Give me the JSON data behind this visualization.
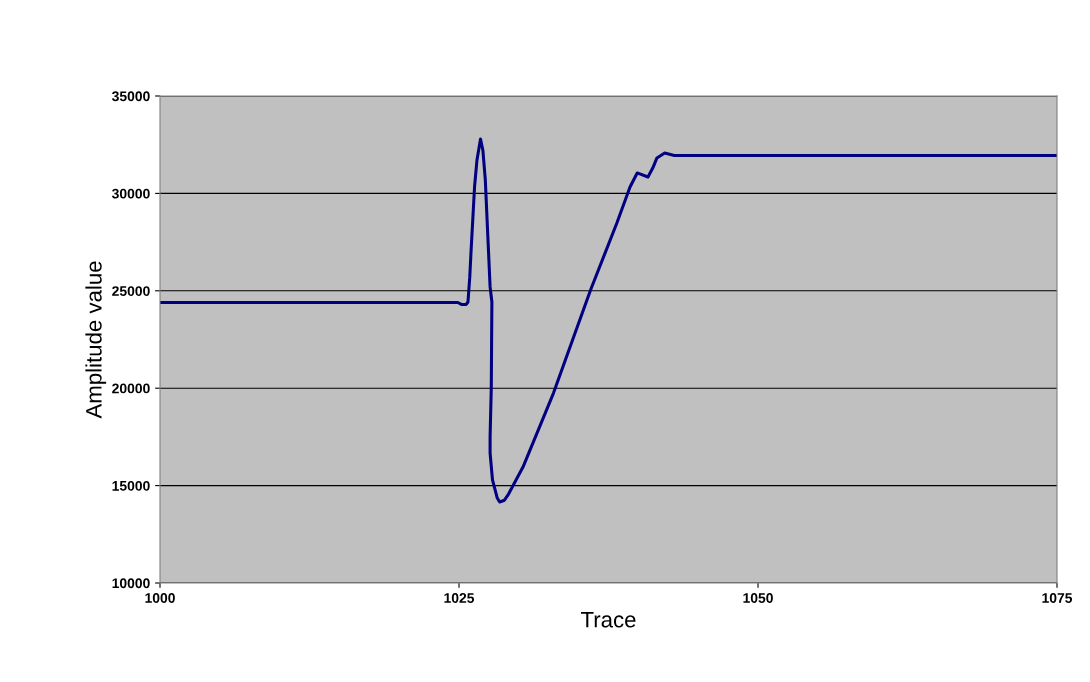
{
  "chart_data": {
    "type": "line",
    "xlabel": "Trace",
    "ylabel": "Amplitude value",
    "series": [
      {
        "color": "#000080",
        "x": [
          1000,
          1024.9,
          1025.2,
          1025.6,
          1025.75,
          1025.9,
          1026.0,
          1026.3,
          1026.5,
          1026.8,
          1027.0,
          1027.2,
          1027.6,
          1027.75,
          1027.7,
          1027.6,
          1027.6,
          1027.8,
          1028.2,
          1028.4,
          1028.8,
          1029.1,
          1030.35,
          1032.9,
          1036.0,
          1038.2,
          1039.3,
          1039.9,
          1040.8,
          1041.2,
          1041.55,
          1042.2,
          1043.0,
          1075
        ],
        "values": [
          24400,
          24400,
          24300,
          24300,
          24425,
          25700,
          26940,
          30330,
          31700,
          32790,
          32200,
          30690,
          25200,
          24425,
          20060,
          17500,
          16670,
          15290,
          14360,
          14160,
          14250,
          14520,
          15950,
          19750,
          25040,
          28480,
          30330,
          31050,
          30840,
          31300,
          31820,
          32070,
          31950,
          31950
        ]
      }
    ],
    "xlim": [
      1000,
      1075
    ],
    "xticks": [
      1000,
      1025,
      1050,
      1075
    ],
    "ylim": [
      10000,
      35000
    ],
    "yticks": [
      10000,
      15000,
      20000,
      25000,
      30000,
      35000
    ],
    "grid": "y",
    "legend": false
  }
}
